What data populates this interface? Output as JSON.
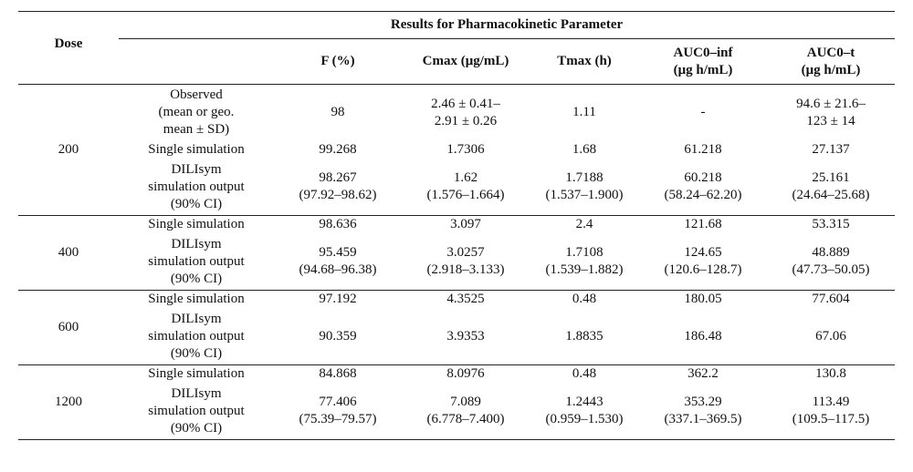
{
  "header": {
    "dose": "Dose",
    "group": "Results for Pharmacokinetic Parameter",
    "cols": [
      {
        "l1": "F (%)",
        "l2": ""
      },
      {
        "l1": "Cmax (μg/mL)",
        "l2": ""
      },
      {
        "l1": "Tmax (h)",
        "l2": ""
      },
      {
        "l1": "AUC0–inf",
        "l2": "(μg h/mL)"
      },
      {
        "l1": "AUC0–t",
        "l2": "(μg h/mL)"
      }
    ]
  },
  "groups": [
    {
      "dose": "200",
      "rows": [
        {
          "label": [
            "Observed",
            "(mean or geo.",
            "mean ± SD)"
          ],
          "cells": [
            [
              "98"
            ],
            [
              "2.46 ± 0.41–",
              "2.91 ± 0.26"
            ],
            [
              "1.11"
            ],
            [
              "-"
            ],
            [
              "94.6 ± 21.6–",
              "123 ± 14"
            ]
          ]
        },
        {
          "label": [
            "Single simulation"
          ],
          "cells": [
            [
              "99.268"
            ],
            [
              "1.7306"
            ],
            [
              "1.68"
            ],
            [
              "61.218"
            ],
            [
              "27.137"
            ]
          ]
        },
        {
          "label": [
            "DILIsym",
            "simulation output",
            "(90% CI)"
          ],
          "cells": [
            [
              "98.267",
              "(97.92–98.62)"
            ],
            [
              "1.62",
              "(1.576–1.664)"
            ],
            [
              "1.7188",
              "(1.537–1.900)"
            ],
            [
              "60.218",
              "(58.24–62.20)"
            ],
            [
              "25.161",
              "(24.64–25.68)"
            ]
          ]
        }
      ]
    },
    {
      "dose": "400",
      "rows": [
        {
          "label": [
            "Single simulation"
          ],
          "cells": [
            [
              "98.636"
            ],
            [
              "3.097"
            ],
            [
              "2.4"
            ],
            [
              "121.68"
            ],
            [
              "53.315"
            ]
          ]
        },
        {
          "label": [
            "DILIsym",
            "simulation output",
            "(90% CI)"
          ],
          "cells": [
            [
              "95.459",
              "(94.68–96.38)"
            ],
            [
              "3.0257",
              "(2.918–3.133)"
            ],
            [
              "1.7108",
              "(1.539–1.882)"
            ],
            [
              "124.65",
              "(120.6–128.7)"
            ],
            [
              "48.889",
              "(47.73–50.05)"
            ]
          ]
        }
      ]
    },
    {
      "dose": "600",
      "rows": [
        {
          "label": [
            "Single simulation"
          ],
          "cells": [
            [
              "97.192"
            ],
            [
              "4.3525"
            ],
            [
              "0.48"
            ],
            [
              "180.05"
            ],
            [
              "77.604"
            ]
          ]
        },
        {
          "label": [
            "DILIsym",
            "simulation output",
            "(90% CI)"
          ],
          "cells": [
            [
              "90.359"
            ],
            [
              "3.9353"
            ],
            [
              "1.8835"
            ],
            [
              "186.48"
            ],
            [
              "67.06"
            ]
          ]
        }
      ]
    },
    {
      "dose": "1200",
      "rows": [
        {
          "label": [
            "Single simulation"
          ],
          "cells": [
            [
              "84.868"
            ],
            [
              "8.0976"
            ],
            [
              "0.48"
            ],
            [
              "362.2"
            ],
            [
              "130.8"
            ]
          ]
        },
        {
          "label": [
            "DILIsym",
            "simulation output",
            "(90% CI)"
          ],
          "cells": [
            [
              "77.406",
              "(75.39–79.57)"
            ],
            [
              "7.089",
              "(6.778–7.400)"
            ],
            [
              "1.2443",
              "(0.959–1.530)"
            ],
            [
              "353.29",
              "(337.1–369.5)"
            ],
            [
              "113.49",
              "(109.5–117.5)"
            ]
          ]
        }
      ]
    }
  ]
}
